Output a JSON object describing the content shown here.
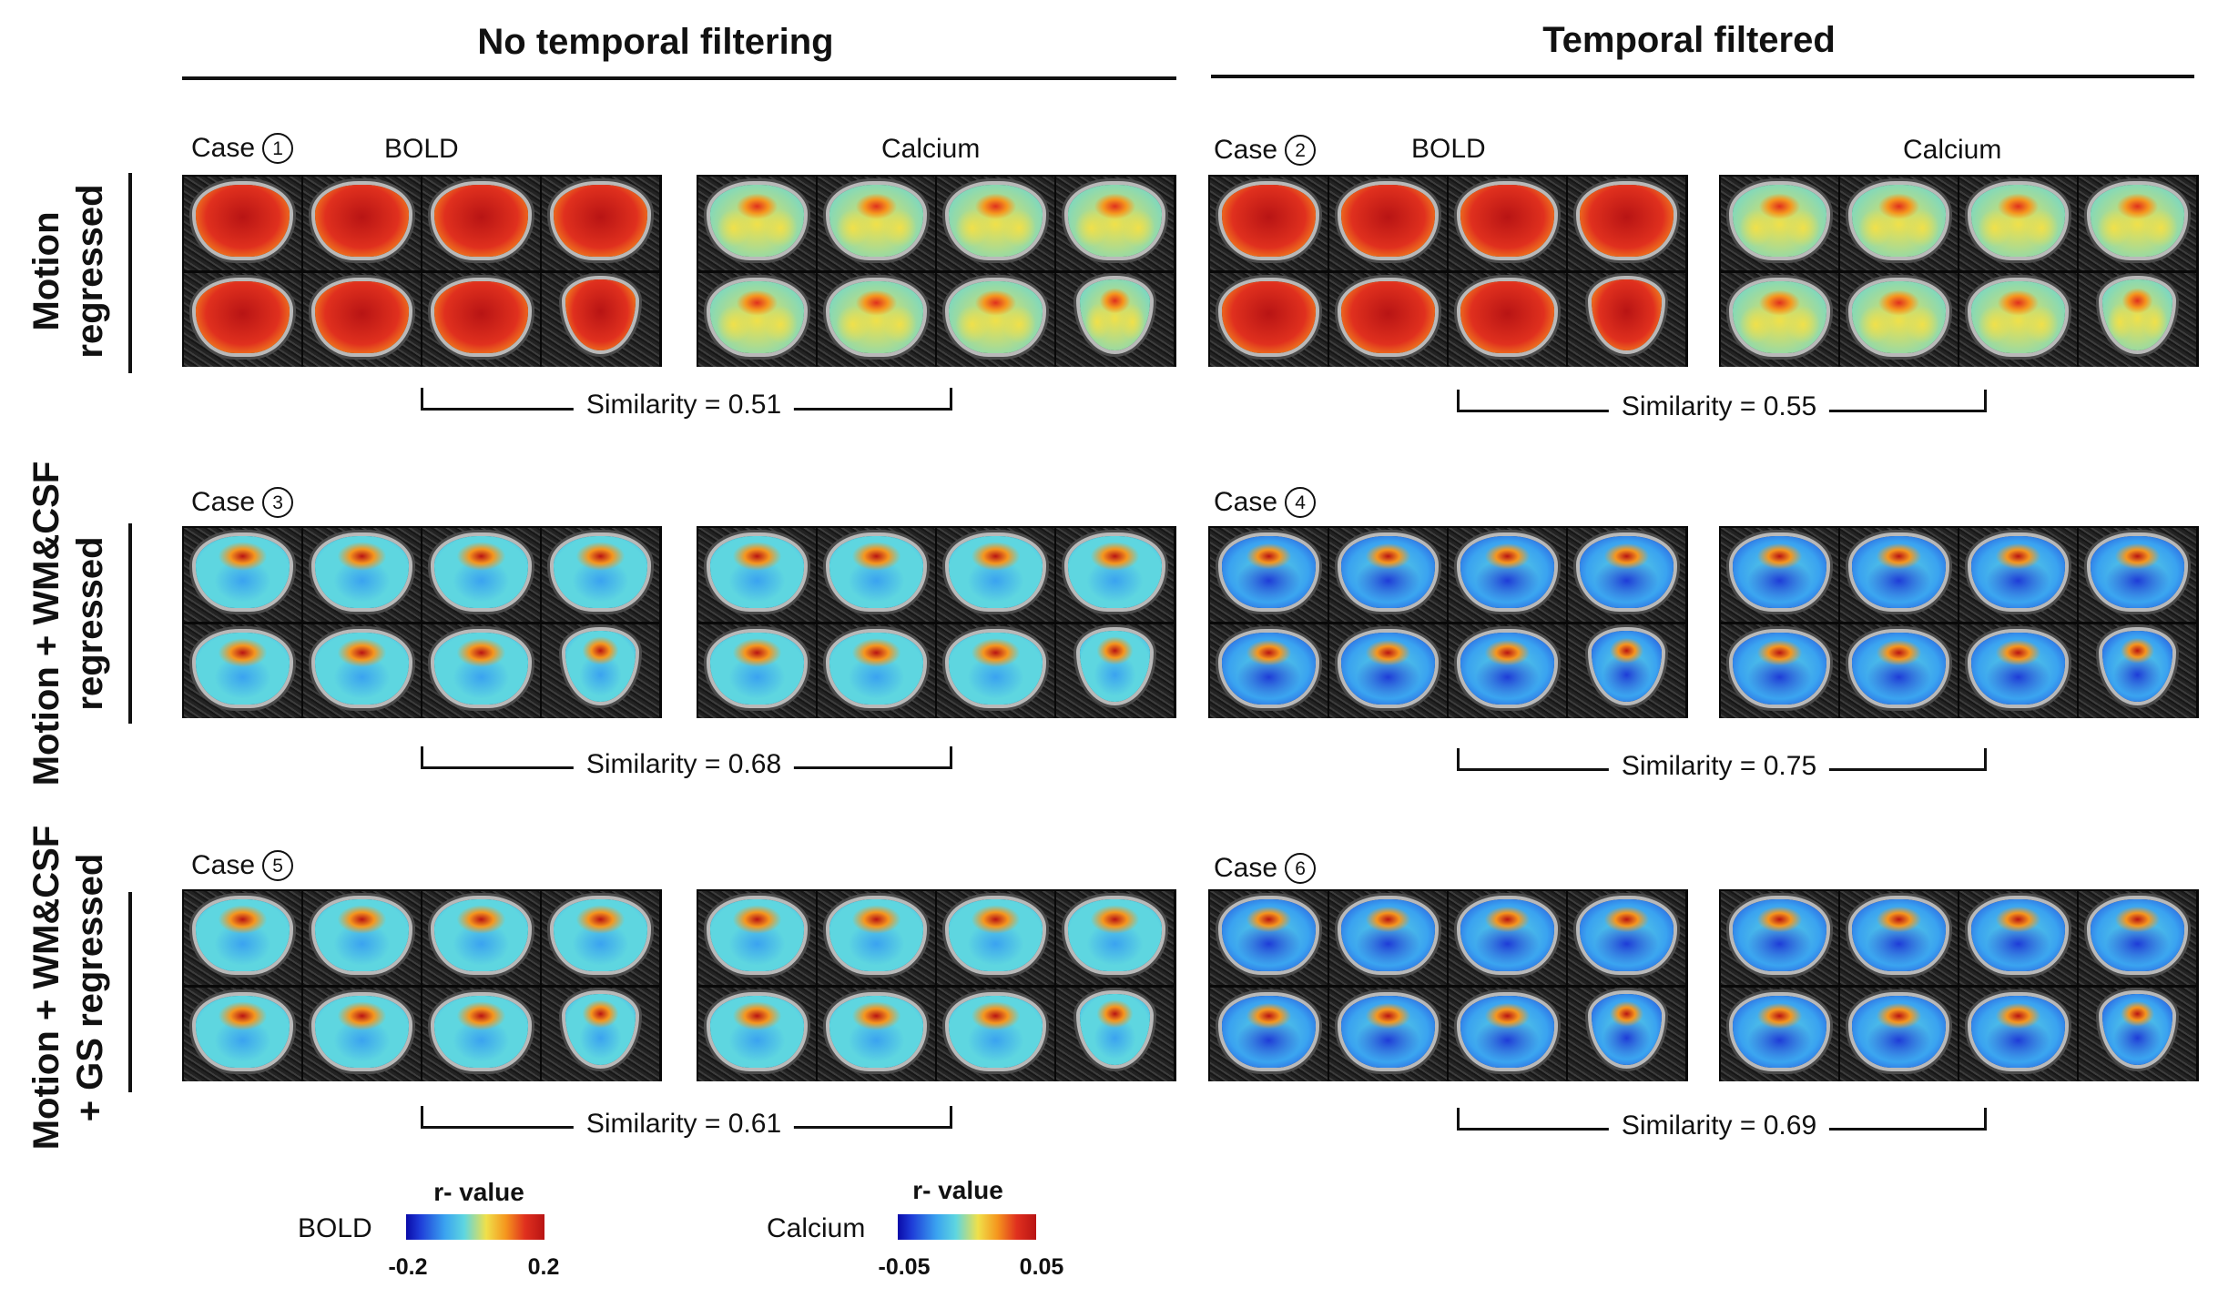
{
  "columns": {
    "left": {
      "title": "No temporal filtering"
    },
    "right": {
      "title": "Temporal filtered"
    }
  },
  "rows": [
    {
      "label_lines": [
        "Motion",
        "regressed"
      ]
    },
    {
      "label_lines": [
        "Motion + WM&CSF",
        "regressed"
      ]
    },
    {
      "label_lines": [
        "Motion + WM&CSF",
        "+ GS regressed"
      ]
    }
  ],
  "case_word": "Case",
  "modalities": {
    "bold": "BOLD",
    "calcium": "Calcium"
  },
  "cases": [
    {
      "number": "1",
      "similarity": "Similarity = 0.51",
      "bold_maps": [
        "red",
        "red",
        "red",
        "red",
        "red",
        "red",
        "red",
        "red"
      ],
      "calcium_maps": [
        "mixed",
        "mixed",
        "mixed",
        "mixed",
        "mixed",
        "mixed",
        "mixed",
        "mixed"
      ]
    },
    {
      "number": "2",
      "similarity": "Similarity = 0.55",
      "bold_maps": [
        "red",
        "red",
        "red",
        "red",
        "red",
        "red",
        "red",
        "red"
      ],
      "calcium_maps": [
        "mixed",
        "mixed",
        "mixed",
        "mixed",
        "mixed",
        "mixed",
        "mixed",
        "mixed"
      ]
    },
    {
      "number": "3",
      "similarity": "Similarity = 0.68",
      "bold_maps": [
        "cyan",
        "cyan",
        "cyan",
        "cyan",
        "cyan",
        "cyan",
        "cyan",
        "cyan"
      ],
      "calcium_maps": [
        "cyan",
        "cyan",
        "cyan",
        "cyan",
        "cyan",
        "cyan",
        "cyan",
        "cyan"
      ]
    },
    {
      "number": "4",
      "similarity": "Similarity = 0.75",
      "bold_maps": [
        "blue",
        "blue",
        "blue",
        "blue",
        "blue",
        "blue",
        "blue",
        "blue"
      ],
      "calcium_maps": [
        "blue",
        "blue",
        "blue",
        "blue",
        "blue",
        "blue",
        "blue",
        "blue"
      ]
    },
    {
      "number": "5",
      "similarity": "Similarity = 0.61",
      "bold_maps": [
        "cyan",
        "cyan",
        "cyan",
        "cyan",
        "cyan",
        "cyan",
        "cyan",
        "cyan"
      ],
      "calcium_maps": [
        "cyan",
        "cyan",
        "cyan",
        "cyan",
        "cyan",
        "cyan",
        "cyan",
        "cyan"
      ]
    },
    {
      "number": "6",
      "similarity": "Similarity = 0.69",
      "bold_maps": [
        "blue",
        "blue",
        "blue",
        "blue",
        "blue",
        "blue",
        "blue",
        "blue"
      ],
      "calcium_maps": [
        "blue",
        "blue",
        "blue",
        "blue",
        "blue",
        "blue",
        "blue",
        "blue"
      ]
    }
  ],
  "colorbars": [
    {
      "label": "BOLD",
      "title": "r- value",
      "min": "-0.2",
      "max": "0.2"
    },
    {
      "label": "Calcium",
      "title": "r- value",
      "min": "-0.05",
      "max": "0.05"
    }
  ],
  "colors": {
    "red_hot": "#b81414",
    "red": "#e0301e",
    "orange": "#f5961e",
    "yellow": "#f0e04a",
    "cyan": "#5ed6e0",
    "light_blue": "#3aa3f0",
    "blue": "#1e3cd8",
    "dark_blue": "#0a0aa8"
  }
}
